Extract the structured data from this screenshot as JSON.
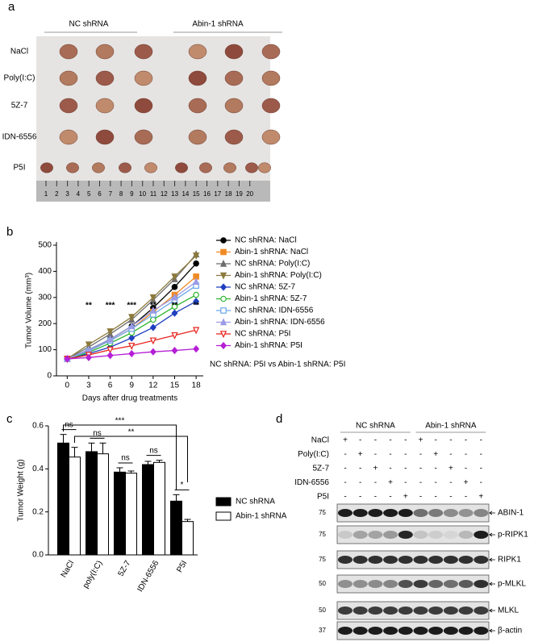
{
  "panel_labels": [
    "a",
    "b",
    "c",
    "d"
  ],
  "photo": {
    "groups": [
      "NC shRNA",
      "Abin-1 shRNA"
    ],
    "rows": [
      "NaCl",
      "Poly(I:C)",
      "5Z-7",
      "IDN-6556",
      "P5I"
    ],
    "ruler": [
      "1",
      "2",
      "3",
      "4",
      "5",
      "6",
      "7",
      "8",
      "9",
      "10",
      "11",
      "12",
      "13",
      "14",
      "15",
      "16",
      "17",
      "18",
      "19",
      "20"
    ]
  },
  "chart_data": [
    {
      "type": "line",
      "x": [
        0,
        3,
        6,
        9,
        12,
        15,
        18
      ],
      "xlim": [
        -1.5,
        19
      ],
      "xticks": [
        0,
        3,
        6,
        9,
        12,
        15,
        18
      ],
      "ylim": [
        0,
        500
      ],
      "yticks": [
        0,
        100,
        200,
        300,
        400,
        500
      ],
      "xlabel": "Days after drug treatments",
      "ylabel": "Tumor Volume (mm³)",
      "legend": "right",
      "series": [
        {
          "name": "NC shRNA: NaCl",
          "color": "#000000",
          "marker": "circle",
          "filled": true,
          "values": [
            65,
            100,
            140,
            190,
            260,
            340,
            430
          ]
        },
        {
          "name": "Abin-1 shRNA: NaCl",
          "color": "#f08a24",
          "marker": "square",
          "filled": true,
          "values": [
            65,
            95,
            135,
            180,
            245,
            310,
            380
          ]
        },
        {
          "name": "NC shRNA: Poly(I:C)",
          "color": "#6e6e6e",
          "marker": "triangle",
          "filled": true,
          "values": [
            65,
            110,
            160,
            215,
            290,
            370,
            465
          ]
        },
        {
          "name": "Abin-1 shRNA: Poly(I:C)",
          "color": "#8c7a3c",
          "marker": "triangle-down",
          "filled": true,
          "values": [
            65,
            120,
            170,
            225,
            300,
            380,
            460
          ]
        },
        {
          "name": "NC shRNA: 5Z-7",
          "color": "#1f3fbf",
          "marker": "diamond",
          "filled": true,
          "values": [
            65,
            85,
            110,
            145,
            185,
            240,
            285
          ]
        },
        {
          "name": "Abin-1 shRNA: 5Z-7",
          "color": "#2db52d",
          "marker": "circle",
          "filled": false,
          "values": [
            65,
            90,
            125,
            165,
            215,
            265,
            310
          ]
        },
        {
          "name": "NC shRNA: IDN-6556",
          "color": "#6aa6e8",
          "marker": "square",
          "filled": false,
          "values": [
            65,
            95,
            135,
            180,
            235,
            290,
            345
          ]
        },
        {
          "name": "Abin-1 shRNA: IDN-6556",
          "color": "#9a9ae6",
          "marker": "triangle",
          "filled": true,
          "values": [
            65,
            100,
            140,
            190,
            250,
            300,
            360
          ]
        },
        {
          "name": "NC shRNA: P5I",
          "color": "#e8231f",
          "marker": "triangle-down",
          "filled": false,
          "values": [
            65,
            80,
            100,
            115,
            135,
            155,
            175
          ]
        },
        {
          "name": "Abin-1 shRNA: P5I",
          "color": "#b51fd6",
          "marker": "diamond",
          "filled": true,
          "values": [
            65,
            70,
            78,
            85,
            92,
            97,
            103
          ]
        }
      ],
      "significance": {
        "x": [
          3,
          6,
          9,
          12,
          15,
          18
        ],
        "labels": [
          "**",
          "***",
          "***",
          "**",
          "**",
          "**"
        ]
      },
      "comparison": "NC shRNA: P5I  vs Abin-1 shRNA: P5I",
      "comparison_color": "#b51fd6"
    },
    {
      "type": "bar",
      "categories": [
        "NaCl",
        "poly(I:C)",
        "5Z-7",
        "IDN-6556",
        "P5I"
      ],
      "ylim": [
        0,
        0.6
      ],
      "yticks": [
        {
          "value": 0,
          "label": "0.0"
        },
        {
          "value": 0.2,
          "label": "0.2"
        },
        {
          "value": 0.4,
          "label": "0.4"
        },
        {
          "value": 0.6,
          "label": "0.6"
        }
      ],
      "ylabel": "Tumor Weight (g)",
      "legend": "right",
      "series": [
        {
          "name": "NC shRNA",
          "color": "#000000",
          "values": [
            0.52,
            0.48,
            0.385,
            0.42,
            0.25
          ],
          "errors": [
            0.04,
            0.04,
            0.02,
            0.015,
            0.03
          ]
        },
        {
          "name": "Abin-1 shRNA",
          "color": "#ffffff",
          "values": [
            0.455,
            0.47,
            0.38,
            0.43,
            0.155
          ],
          "errors": [
            0.045,
            0.05,
            0.01,
            0.01,
            0.01
          ]
        }
      ],
      "pair_tests": [
        "ns",
        "ns",
        "ns",
        "ns",
        "*"
      ],
      "bracket_labels": [
        "***",
        "**"
      ]
    }
  ],
  "blot": {
    "groups": [
      "NC shRNA",
      "Abin-1 shRNA"
    ],
    "treatments": [
      "NaCl",
      "Poly(I:C)",
      "5Z-7",
      "IDN-6556",
      "P5I"
    ],
    "matrix": [
      [
        "+",
        "-",
        "-",
        "-",
        "-",
        "+",
        "-",
        "-",
        "-",
        "-"
      ],
      [
        "-",
        "+",
        "-",
        "-",
        "-",
        "-",
        "+",
        "-",
        "-",
        "-"
      ],
      [
        "-",
        "-",
        "+",
        "-",
        "-",
        "-",
        "-",
        "+",
        "-",
        "-"
      ],
      [
        "-",
        "-",
        "-",
        "+",
        "-",
        "-",
        "-",
        "-",
        "+",
        "-"
      ],
      [
        "-",
        "-",
        "-",
        "-",
        "+",
        "-",
        "-",
        "-",
        "-",
        "+"
      ]
    ],
    "proteins": [
      "ABIN-1",
      "p-RIPK1",
      "RIPK1",
      "p-MLKL",
      "MLKL",
      "β-actin"
    ],
    "mw": [
      "75",
      "75",
      "75",
      "50",
      "50",
      "37"
    ]
  }
}
